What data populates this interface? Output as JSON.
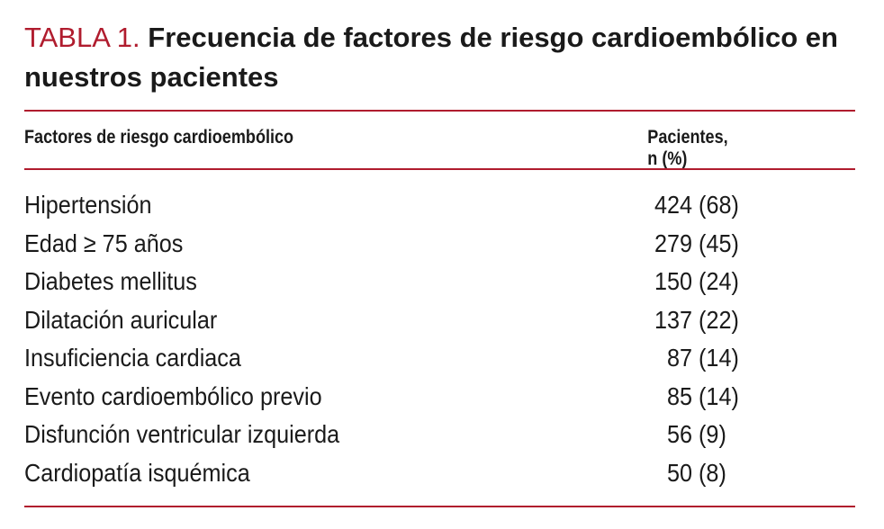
{
  "title": {
    "label": "TABLA 1.",
    "text": "Frecuencia de factores de riesgo cardioembólico en nuestros pacientes"
  },
  "table": {
    "headers": [
      "Factores de riesgo cardioembólico",
      "Pacientes, n (%)"
    ],
    "rows": [
      {
        "factor": "Hipertensión",
        "value": "424 (68)"
      },
      {
        "factor": "Edad ≥ 75 años",
        "value": "279 (45)"
      },
      {
        "factor": "Diabetes mellitus",
        "value": "150 (24)"
      },
      {
        "factor": "Dilatación auricular",
        "value": "137 (22)"
      },
      {
        "factor": "Insuficiencia cardiaca",
        "value": "  87 (14)"
      },
      {
        "factor": "Evento cardioembólico previo",
        "value": "  85 (14)"
      },
      {
        "factor": "Disfunción ventricular izquierda",
        "value": "  56 (9)"
      },
      {
        "factor": "Cardiopatía isquémica",
        "value": "  50 (8)"
      }
    ]
  },
  "colors": {
    "accent": "#b01c2e",
    "text": "#1a1a1a"
  }
}
